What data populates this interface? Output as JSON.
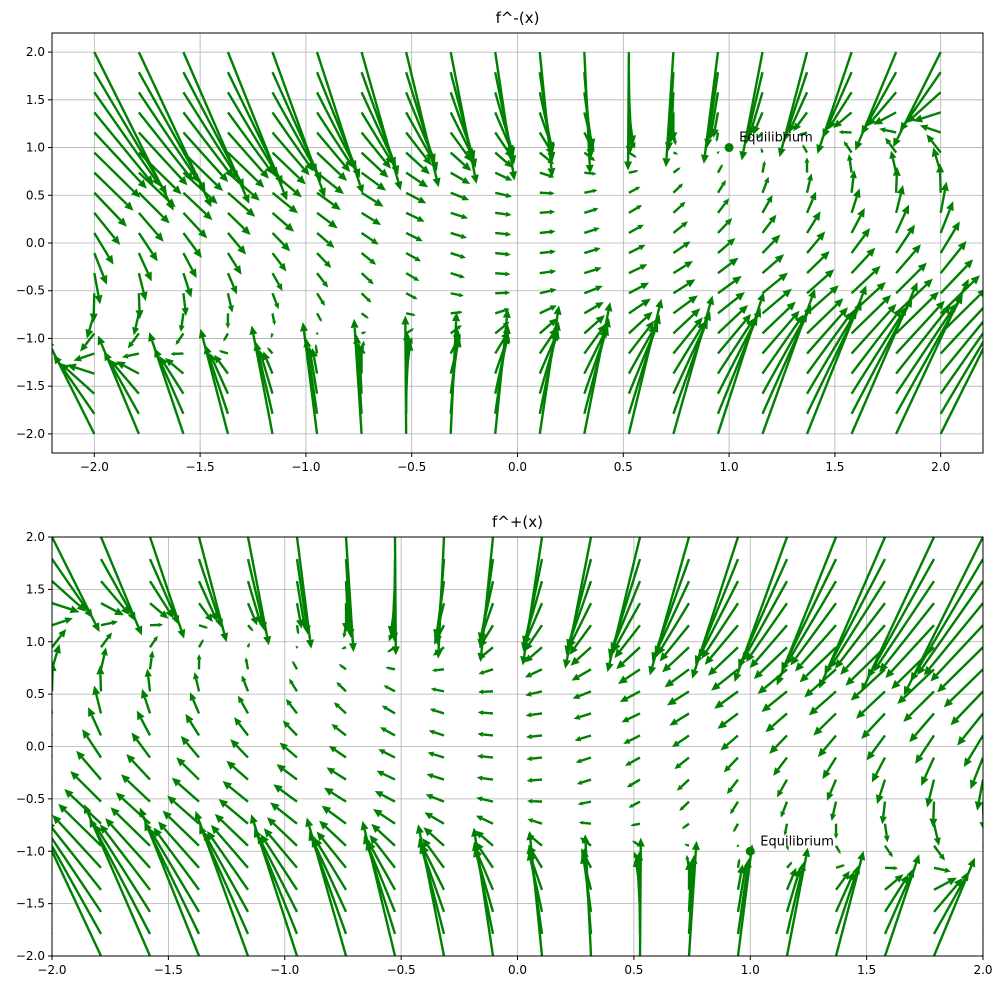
{
  "chart_data": [
    {
      "type": "quiver",
      "title": "f^-(x)",
      "xlabel": "",
      "ylabel": "",
      "xlim": [
        -2.2,
        2.2
      ],
      "ylim": [
        -2.2,
        2.2
      ],
      "xticks": [
        -2.0,
        -1.5,
        -1.0,
        -0.5,
        0.0,
        0.5,
        1.0,
        1.5,
        2.0
      ],
      "yticks": [
        -2.0,
        -1.5,
        -1.0,
        -0.5,
        0.0,
        0.5,
        1.0,
        1.5,
        2.0
      ],
      "xtick_labels": [
        "−2.0",
        "−1.5",
        "−1.0",
        "−0.5",
        "0.0",
        "0.5",
        "1.0",
        "1.5",
        "2.0"
      ],
      "ytick_labels": [
        "−2.0",
        "−1.5",
        "−1.0",
        "−0.5",
        "0.0",
        "0.5",
        "1.0",
        "1.5",
        "2.0"
      ],
      "grid": true,
      "arrow_color": "#008000",
      "point_color": "#008000",
      "field": {
        "x_range": [
          -2,
          2
        ],
        "y_range": [
          -2,
          2
        ],
        "n": 20,
        "u": "1 - x*y",
        "v": "x - y^3"
      },
      "equilibrium": {
        "x": 1,
        "y": 1,
        "label": "Equilibrium"
      }
    },
    {
      "type": "quiver",
      "title": "f^+(x)",
      "xlabel": "",
      "ylabel": "",
      "xlim": [
        -2.0,
        2.0
      ],
      "ylim": [
        -2.0,
        2.0
      ],
      "xticks": [
        -2.0,
        -1.5,
        -1.0,
        -0.5,
        0.0,
        0.5,
        1.0,
        1.5,
        2.0
      ],
      "yticks": [
        -2.0,
        -1.5,
        -1.0,
        -0.5,
        0.0,
        0.5,
        1.0,
        1.5,
        2.0
      ],
      "xtick_labels": [
        "−2.0",
        "−1.5",
        "−1.0",
        "−0.5",
        "0.0",
        "0.5",
        "1.0",
        "1.5",
        "2.0"
      ],
      "ytick_labels": [
        "−2.0",
        "−1.5",
        "−1.0",
        "−0.5",
        "0.0",
        "0.5",
        "1.0",
        "1.5",
        "2.0"
      ],
      "grid": true,
      "arrow_color": "#008000",
      "point_color": "#008000",
      "field": {
        "x_range": [
          -2,
          2
        ],
        "y_range": [
          -2,
          2
        ],
        "n": 20,
        "u": "-1 - x*y",
        "v": "-x - y^3"
      },
      "equilibrium": {
        "x": 1,
        "y": -1,
        "label": "Equilibrium"
      }
    }
  ]
}
